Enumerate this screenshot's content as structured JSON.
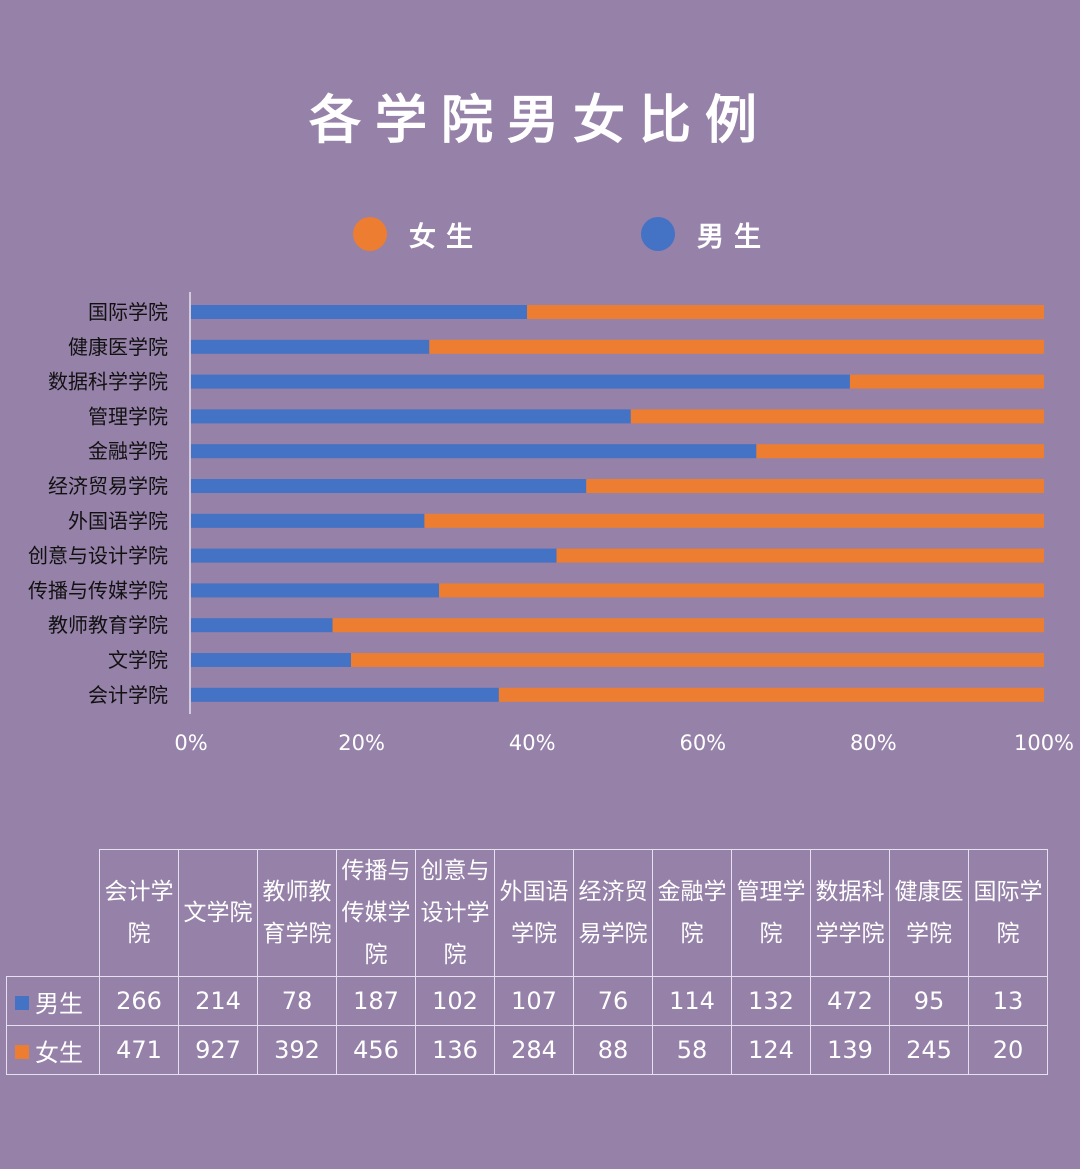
{
  "title": "各学院男女比例",
  "colors": {
    "female": "#ed7d31",
    "male": "#4472c4",
    "background": "#9681a9"
  },
  "legend": {
    "female_label": "女生",
    "male_label": "男生",
    "position": "top"
  },
  "chart_data": {
    "type": "bar",
    "orientation": "horizontal",
    "stacked": "percent",
    "categories": [
      "国际学院",
      "健康医学院",
      "数据科学学院",
      "管理学院",
      "金融学院",
      "经济贸易学院",
      "外国语学院",
      "创意与设计学院",
      "传播与传媒学院",
      "教师教育学院",
      "文学院",
      "会计学院"
    ],
    "series": [
      {
        "name": "男生",
        "color": "#4472c4",
        "values": [
          13,
          95,
          472,
          132,
          114,
          76,
          107,
          102,
          187,
          78,
          214,
          266
        ]
      },
      {
        "name": "女生",
        "color": "#ed7d31",
        "values": [
          20,
          245,
          139,
          124,
          58,
          88,
          284,
          136,
          456,
          392,
          927,
          471
        ]
      }
    ],
    "x_ticks": [
      "0%",
      "20%",
      "40%",
      "60%",
      "80%",
      "100%"
    ],
    "xlim": [
      0,
      100
    ],
    "grid": false
  },
  "table": {
    "headers": [
      "会计学院",
      "文学院",
      "教师教育学院",
      "传播与传媒学院",
      "创意与设计学院",
      "外国语学院",
      "经济贸易学院",
      "金融学院",
      "管理学院",
      "数据科学学院",
      "健康医学院",
      "国际学院"
    ],
    "rows": [
      {
        "label": "男生",
        "values": [
          "266",
          "214",
          "78",
          "187",
          "102",
          "107",
          "76",
          "114",
          "132",
          "472",
          "95",
          "13"
        ]
      },
      {
        "label": "女生",
        "values": [
          "471",
          "927",
          "392",
          "456",
          "136",
          "284",
          "88",
          "58",
          "124",
          "139",
          "245",
          "20"
        ]
      }
    ]
  }
}
